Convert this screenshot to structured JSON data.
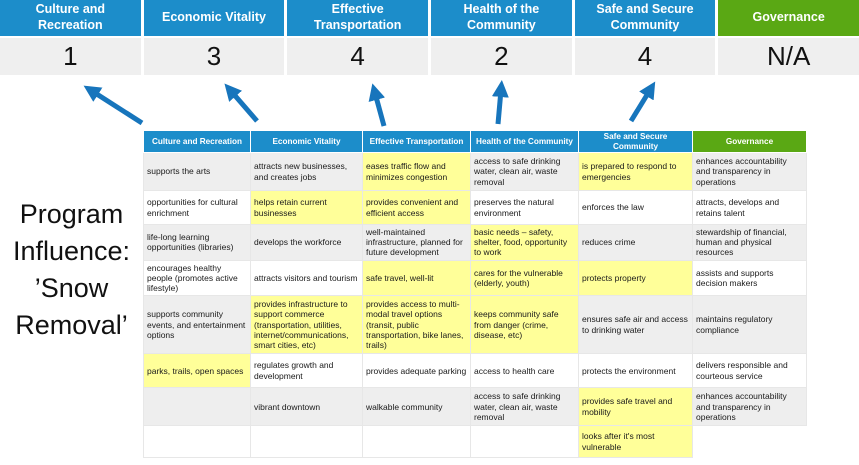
{
  "program_label": "Program\nInfluence:\n’Snow\nRemoval’",
  "summary": {
    "columns": [
      {
        "label": "Culture and Recreation",
        "score": "1",
        "color": "#1C8DCA"
      },
      {
        "label": "Economic Vitality",
        "score": "3",
        "color": "#1C8DCA"
      },
      {
        "label": "Effective Transportation",
        "score": "4",
        "color": "#1C8DCA"
      },
      {
        "label": "Health of the Community",
        "score": "2",
        "color": "#1C8DCA"
      },
      {
        "label": "Safe and Secure Community",
        "score": "4",
        "color": "#1C8DCA"
      },
      {
        "label": "Governance",
        "score": "N/A",
        "color": "#5AA814"
      }
    ]
  },
  "matrix": {
    "columns": [
      {
        "label": "Culture and Recreation",
        "color": "#1C8DCA"
      },
      {
        "label": "Economic Vitality",
        "color": "#1C8DCA"
      },
      {
        "label": "Effective Transportation",
        "color": "#1C8DCA"
      },
      {
        "label": "Health of the Community",
        "color": "#1C8DCA"
      },
      {
        "label": "Safe and Secure Community",
        "color": "#1C8DCA"
      },
      {
        "label": "Governance",
        "color": "#5AA814"
      }
    ],
    "rows": [
      [
        {
          "t": "supports the arts",
          "h": false
        },
        {
          "t": "attracts new businesses, and creates jobs",
          "h": false
        },
        {
          "t": "eases traffic flow and minimizes congestion",
          "h": true
        },
        {
          "t": "access to safe drinking water, clean air, waste removal",
          "h": false
        },
        {
          "t": "is prepared to respond to emergencies",
          "h": true
        },
        {
          "t": "enhances accountability and transparency in operations",
          "h": false
        }
      ],
      [
        {
          "t": "opportunities for cultural enrichment",
          "h": false
        },
        {
          "t": "helps retain current businesses",
          "h": true
        },
        {
          "t": "provides convenient and efficient access",
          "h": true
        },
        {
          "t": "preserves the natural environment",
          "h": false
        },
        {
          "t": "enforces the law",
          "h": false
        },
        {
          "t": "attracts, develops and retains talent",
          "h": false
        }
      ],
      [
        {
          "t": "life-long learning opportunities (libraries)",
          "h": false
        },
        {
          "t": "develops the workforce",
          "h": false
        },
        {
          "t": "well-maintained infrastructure, planned for future development",
          "h": false
        },
        {
          "t": "basic needs – safety, shelter, food, opportunity to work",
          "h": true
        },
        {
          "t": "reduces crime",
          "h": false
        },
        {
          "t": "stewardship of financial, human and physical resources",
          "h": false
        }
      ],
      [
        {
          "t": "encourages healthy people (promotes active lifestyle)",
          "h": false
        },
        {
          "t": "attracts visitors and tourism",
          "h": false
        },
        {
          "t": "safe travel, well-lit",
          "h": true
        },
        {
          "t": "cares for the vulnerable (elderly, youth)",
          "h": true
        },
        {
          "t": "protects property",
          "h": true
        },
        {
          "t": "assists and supports decision makers",
          "h": false
        }
      ],
      [
        {
          "t": "supports community events, and entertainment options",
          "h": false
        },
        {
          "t": "provides infrastructure to support commerce (transportation, utilities, internet/communications, smart cities, etc)",
          "h": true
        },
        {
          "t": "provides access to multi-modal travel options (transit, public transportation, bike lanes, trails)",
          "h": true
        },
        {
          "t": "keeps community safe from danger (crime, disease, etc)",
          "h": true
        },
        {
          "t": "ensures safe air and access to drinking water",
          "h": false
        },
        {
          "t": "maintains regulatory compliance",
          "h": false
        }
      ],
      [
        {
          "t": "parks, trails, open spaces",
          "h": true
        },
        {
          "t": "regulates growth and development",
          "h": false
        },
        {
          "t": "provides adequate parking",
          "h": false
        },
        {
          "t": "access to health care",
          "h": false
        },
        {
          "t": "protects the environment",
          "h": false
        },
        {
          "t": "delivers responsible and courteous service",
          "h": false
        }
      ],
      [
        {
          "t": "",
          "h": false
        },
        {
          "t": "vibrant downtown",
          "h": false
        },
        {
          "t": "walkable community",
          "h": false
        },
        {
          "t": "access to safe drinking water, clean air, waste removal",
          "h": false
        },
        {
          "t": "provides safe travel and mobility",
          "h": true
        },
        {
          "t": "enhances accountability and transparency in operations",
          "h": false
        }
      ],
      [
        {
          "t": "",
          "h": false
        },
        {
          "t": "",
          "h": false
        },
        {
          "t": "",
          "h": false
        },
        {
          "t": "",
          "h": false
        },
        {
          "t": "looks after it's most vulnerable",
          "h": true
        },
        {
          "t": "",
          "h": false,
          "v": true
        }
      ]
    ]
  },
  "colors": {
    "header_blue": "#1C8DCA",
    "header_green": "#5AA814",
    "highlight_yellow": "#FFFF99",
    "row_stripe_gray": "#EEEEEE",
    "score_band_gray": "#EFEFEF",
    "arrow_blue": "#1775BC"
  }
}
